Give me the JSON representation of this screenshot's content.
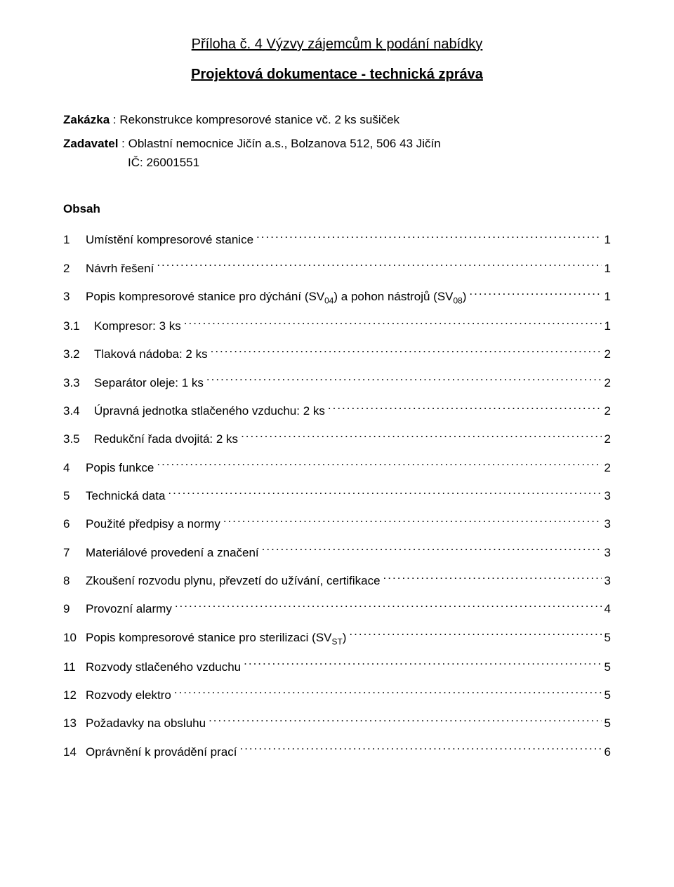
{
  "title_line1": "Příloha č. 4 Výzvy zájemcům k podání nabídky",
  "title_line2": "Projektová dokumentace - technická zpráva",
  "order": {
    "label": "Zakázka",
    "sep": " : ",
    "text": "Rekonstrukce kompresorové stanice vč. 2 ks sušiček"
  },
  "client": {
    "label": "Zadavatel",
    "sep": " : ",
    "line1": "Oblastní nemocnice Jičín a.s., Bolzanova 512, 506 43 Jičín",
    "ic_label": "IČ: ",
    "ic_value": "26001551"
  },
  "obsah_label": "Obsah",
  "toc": [
    {
      "num": "1",
      "text": "Umístění kompresorové stanice",
      "page": "1",
      "level": 1
    },
    {
      "num": "2",
      "text": "Návrh řešení",
      "page": "1",
      "level": 1
    },
    {
      "num": "3",
      "text_pre": "Popis kompresorové stanice pro dýchání (SV",
      "sub1": "04",
      "text_mid": ") a pohon nástrojů (SV",
      "sub2": "08",
      "text_post": ")",
      "page": "1",
      "level": 1,
      "has_subs": true
    },
    {
      "num": "3.1",
      "text": "Kompresor: 3 ks",
      "page": "1",
      "level": 2
    },
    {
      "num": "3.2",
      "text": "Tlaková nádoba: 2 ks",
      "page": "2",
      "level": 2
    },
    {
      "num": "3.3",
      "text": "Separátor oleje: 1 ks",
      "page": "2",
      "level": 2
    },
    {
      "num": "3.4",
      "text": "Úpravná jednotka stlačeného vzduchu: 2 ks",
      "page": "2",
      "level": 2
    },
    {
      "num": "3.5",
      "text": "Redukční řada dvojitá: 2 ks",
      "page": "2",
      "level": 2
    },
    {
      "num": "4",
      "text": "Popis funkce",
      "page": "2",
      "level": 1
    },
    {
      "num": "5",
      "text": "Technická data",
      "page": "3",
      "level": 1
    },
    {
      "num": "6",
      "text": "Použité předpisy a normy",
      "page": "3",
      "level": 1
    },
    {
      "num": "7",
      "text": "Materiálové provedení a značení",
      "page": "3",
      "level": 1
    },
    {
      "num": "8",
      "text": "Zkoušení rozvodu plynu, převzetí do užívání, certifikace",
      "page": "3",
      "level": 1
    },
    {
      "num": "9",
      "text": "Provozní alarmy",
      "page": "4",
      "level": 1
    },
    {
      "num": "10",
      "text_pre": "Popis kompresorové stanice pro sterilizaci (SV",
      "sub1": "ST",
      "text_post": ")",
      "page": "5",
      "level": 1,
      "has_subs": true
    },
    {
      "num": "11",
      "text": "Rozvody stlačeného vzduchu",
      "page": "5",
      "level": 1
    },
    {
      "num": "12",
      "text": "Rozvody elektro",
      "page": "5",
      "level": 1
    },
    {
      "num": "13",
      "text": "Požadavky na obsluhu",
      "page": "5",
      "level": 1
    },
    {
      "num": "14",
      "text": "Oprávnění k provádění prací",
      "page": "6",
      "level": 1
    }
  ]
}
